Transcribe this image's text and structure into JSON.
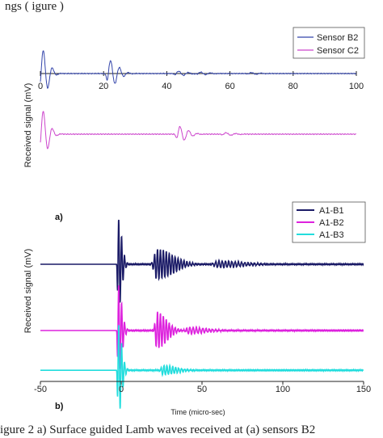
{
  "top_text": "ngs ( igure )",
  "caption": "igure 2    a) Surface guided Lamb waves received at (a) sensors B2",
  "chart_data": [
    {
      "panel_label": "a)",
      "type": "line",
      "ylabel": "Received signal (mV)",
      "xlabel": "",
      "xlim": [
        0,
        100
      ],
      "xticks": [
        0,
        20,
        40,
        60,
        80,
        100
      ],
      "legend_position": "top-right",
      "series": [
        {
          "name": "Sensor B2",
          "color": "#3344aa",
          "offset": 0,
          "bursts": [
            {
              "t": 0.2,
              "amp": 10,
              "f": 0.34,
              "w": 2.1
            },
            {
              "t": 21.5,
              "amp": 5.5,
              "f": 0.35,
              "w": 2.8
            },
            {
              "t": 43,
              "amp": 1,
              "f": 0.32,
              "w": 3
            },
            {
              "t": 50,
              "amp": 0.6,
              "f": 0.32,
              "w": 3
            },
            {
              "t": 66,
              "amp": 0.4,
              "f": 0.32,
              "w": 3
            }
          ]
        },
        {
          "name": "Sensor C2",
          "color": "#cc44cc",
          "offset": -25,
          "bursts": [
            {
              "t": 0.2,
              "amp": 10,
              "f": 0.34,
              "w": 2.1
            },
            {
              "t": 43.5,
              "amp": 3.2,
              "f": 0.36,
              "w": 2.8
            },
            {
              "t": 58,
              "amp": 0.6,
              "f": 0.32,
              "w": 3
            }
          ]
        }
      ]
    },
    {
      "panel_label": "b)",
      "type": "line",
      "ylabel": "Received signal (mV)",
      "xlabel": "Time (micro-sec)",
      "xlim": [
        -50,
        150
      ],
      "xticks": [
        -50,
        0,
        50,
        100,
        150
      ],
      "legend_position": "top-right",
      "series": [
        {
          "name": "A1-B1",
          "color": "#1a1a66",
          "offset": 0,
          "bursts": [
            {
              "t": -2,
              "amp": 14,
              "f": 0.55,
              "w": 2.2
            },
            {
              "t": 22,
              "amp": 4.5,
              "f": 0.55,
              "w": 10
            },
            {
              "t": 60,
              "amp": 1,
              "f": 0.5,
              "w": 15
            }
          ]
        },
        {
          "name": "A1-B2",
          "color": "#dd22dd",
          "offset": -20,
          "bursts": [
            {
              "t": -2,
              "amp": 14,
              "f": 0.55,
              "w": 2.2
            },
            {
              "t": 22,
              "amp": 5.5,
              "f": 0.55,
              "w": 6
            },
            {
              "t": 42,
              "amp": 1,
              "f": 0.5,
              "w": 10
            }
          ]
        },
        {
          "name": "A1-B3",
          "color": "#22dddd",
          "offset": -32,
          "bursts": [
            {
              "t": -2,
              "amp": 14,
              "f": 0.55,
              "w": 2.2
            },
            {
              "t": 26,
              "amp": 1.4,
              "f": 0.55,
              "w": 8
            }
          ]
        }
      ]
    }
  ]
}
